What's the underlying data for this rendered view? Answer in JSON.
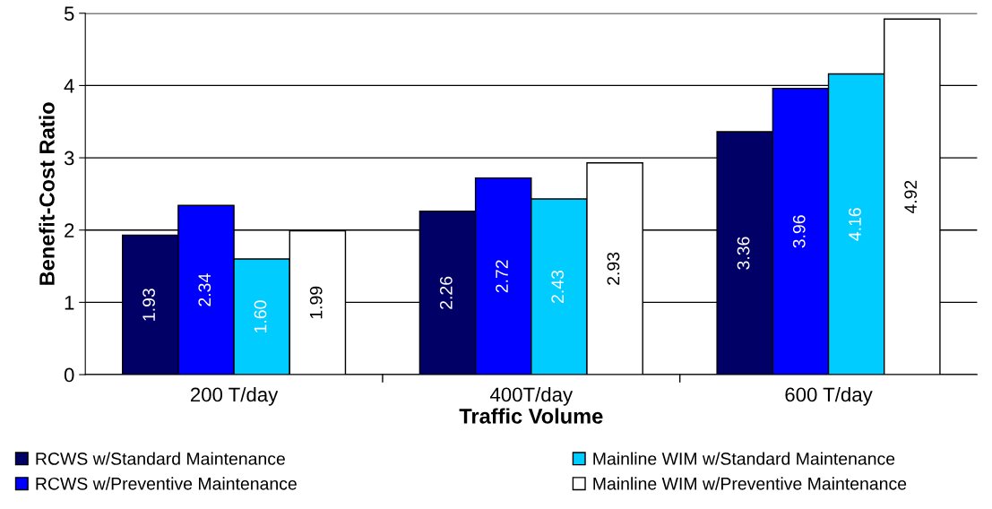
{
  "chart_data": {
    "type": "bar",
    "xlabel": "Traffic Volume",
    "ylabel": "Benefit-Cost Ratio",
    "categories": [
      "200 T/day",
      "400T/day",
      "600 T/day"
    ],
    "series": [
      {
        "name": "RCWS w/Standard Maintenance",
        "color": "#000066",
        "values": [
          1.93,
          2.26,
          3.36
        ],
        "value_labels": [
          "1.93",
          "2.26",
          "3.36"
        ]
      },
      {
        "name": "RCWS w/Preventive Maintenance",
        "color": "#0000ff",
        "values": [
          2.34,
          2.72,
          3.96
        ],
        "value_labels": [
          "2.34",
          "2.72",
          "3.96"
        ]
      },
      {
        "name": "Mainline WIM w/Standard Maintenance",
        "color": "#00ccff",
        "values": [
          1.6,
          2.43,
          4.16
        ],
        "value_labels": [
          "1.60",
          "2.43",
          "4.16"
        ]
      },
      {
        "name": "Mainline WIM w/Preventive Maintenance",
        "color": "#ffffff",
        "values": [
          1.99,
          2.93,
          4.92
        ],
        "value_labels": [
          "1.99",
          "2.93",
          "4.92"
        ]
      }
    ],
    "ylim": [
      0,
      5
    ],
    "yticks": [
      0,
      1,
      2,
      3,
      4,
      5
    ],
    "grid": "y",
    "legend": "bottom"
  }
}
